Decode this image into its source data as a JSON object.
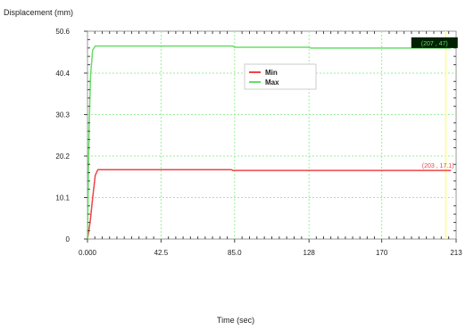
{
  "chart_data": {
    "type": "line",
    "ylabel": "Displacement (mm)",
    "xlabel": "Time (sec)",
    "xlim": [
      0,
      213
    ],
    "ylim": [
      0,
      50.6
    ],
    "x_ticks": [
      0,
      42.5,
      85.0,
      128,
      170,
      213
    ],
    "x_tick_labels": [
      "0.000",
      "42.5",
      "85.0",
      "128",
      "170",
      "213"
    ],
    "y_ticks": [
      0,
      10.1,
      20.2,
      30.3,
      40.4,
      50.6
    ],
    "y_tick_labels": [
      "0",
      "10.1",
      "20.2",
      "30.3",
      "40.4",
      "50.6"
    ],
    "grid": true,
    "legend_position": "upper-middle",
    "series": [
      {
        "name": "Min",
        "color": "#ee4444",
        "x": [
          0,
          1.5,
          3.0,
          4.5,
          6.0,
          83.0,
          84.0,
          128,
          210
        ],
        "y": [
          0,
          4.0,
          10.0,
          15.5,
          16.9,
          16.9,
          16.7,
          16.7,
          16.7
        ]
      },
      {
        "name": "Max",
        "color": "#66dd66",
        "x": [
          0,
          0.4,
          1.0,
          1.8,
          3.0,
          4.5,
          6.0,
          84.0,
          85.0,
          128,
          129,
          210
        ],
        "y": [
          0,
          12.0,
          28.0,
          40.0,
          46.0,
          47.0,
          47.0,
          47.0,
          46.7,
          46.7,
          46.5,
          46.5
        ]
      }
    ],
    "annotations": [
      {
        "series": "Min",
        "text": "(203 , 17.1)",
        "color": "#ee4444"
      },
      {
        "series": "Max",
        "text": "(207 , 47)",
        "color": "#66dd66",
        "background": "#002200"
      }
    ],
    "cursor_x": 207,
    "cursor_color": "#ffff88"
  }
}
